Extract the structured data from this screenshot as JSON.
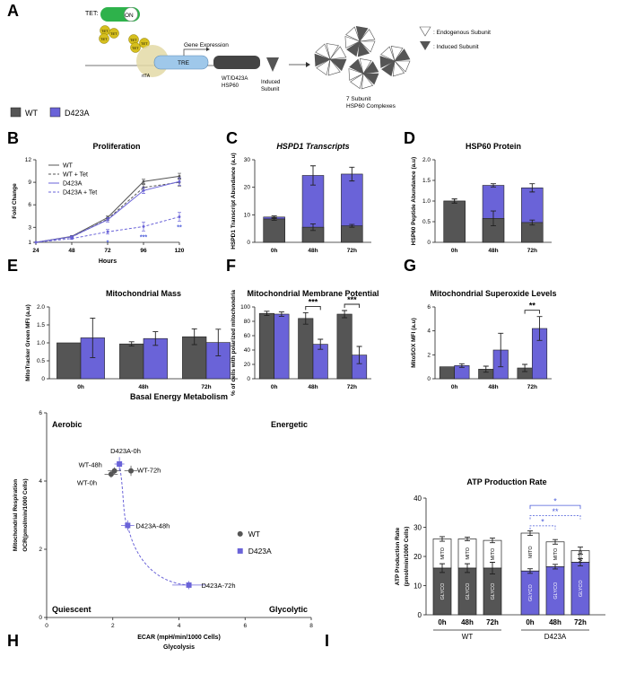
{
  "colors": {
    "wt": "#555555",
    "d423a": "#6a63d8",
    "tet_green": "#2eb24b",
    "tet_yellow": "#d6bf1e",
    "tre": "#9fc8ea",
    "star_blue": "#4a5bd9"
  },
  "panel_letters": [
    "A",
    "B",
    "C",
    "D",
    "E",
    "F",
    "G",
    "H",
    "I"
  ],
  "panelA": {
    "tet_label": "TET:",
    "on_label": "ON",
    "tet_chip": "TET",
    "rtta": "rtTA",
    "tre": "TRE",
    "gene_expression": "Gene Expression",
    "construct": "WT/D423A\nHSP60",
    "induced_subunit": "Induced\nSubunit",
    "complex_caption": "7 Subunit\nHSP60 Complexes",
    "legend_endogenous": ": Endogenous Subunit",
    "legend_induced": ": Induced Subunit"
  },
  "main_legend": {
    "wt": "WT",
    "d423a": "D423A"
  },
  "chart_data": [
    {
      "panel": "B",
      "type": "line",
      "title": "Proliferation",
      "xlabel": "Hours",
      "ylabel": "Fold Change",
      "x": [
        24,
        48,
        72,
        96,
        120
      ],
      "xlim": [
        24,
        120
      ],
      "ylim": [
        1,
        12
      ],
      "yticks": [
        1,
        3,
        6,
        9,
        12
      ],
      "series": [
        {
          "name": "WT",
          "values": [
            1,
            1.8,
            4.3,
            9.1,
            9.8
          ],
          "err": [
            0,
            0.1,
            0.2,
            0.3,
            0.4
          ],
          "style": "solid",
          "color": "wt"
        },
        {
          "name": "WT + Tet",
          "values": [
            1,
            1.7,
            4.1,
            8.3,
            9.0
          ],
          "err": [
            0,
            0.1,
            0.2,
            0.4,
            0.5
          ],
          "style": "dashed",
          "color": "wt"
        },
        {
          "name": "D423A",
          "values": [
            1,
            1.75,
            4.0,
            7.9,
            9.1
          ],
          "err": [
            0,
            0.1,
            0.3,
            0.4,
            0.5
          ],
          "style": "solid",
          "color": "d423a"
        },
        {
          "name": "D423A + Tet",
          "values": [
            1,
            1.5,
            2.4,
            3.1,
            4.4
          ],
          "err": [
            0,
            0.1,
            0.3,
            0.6,
            0.6
          ],
          "style": "dashed",
          "color": "d423a"
        }
      ],
      "annotations": [
        {
          "x": 72,
          "text": "*"
        },
        {
          "x": 96,
          "text": "***"
        },
        {
          "x": 120,
          "text": "**"
        }
      ]
    },
    {
      "panel": "C",
      "type": "bar",
      "title": "HSPD1 Transcripts",
      "ylabel": "HSPD1 Transcript Abundance (a.u)",
      "categories": [
        "0h",
        "48h",
        "72h"
      ],
      "ylim": [
        0,
        30
      ],
      "yticks": [
        0,
        10,
        20,
        30
      ],
      "series": [
        {
          "name": "WT",
          "values": [
            8.5,
            5.5,
            6.0
          ],
          "err": [
            0.5,
            1.2,
            0.5
          ]
        },
        {
          "name": "D423A",
          "values": [
            9.2,
            24.3,
            24.8
          ],
          "err": [
            0.4,
            3.5,
            2.5
          ]
        }
      ],
      "stacked": true
    },
    {
      "panel": "D",
      "type": "bar",
      "title": "HSP60 Protein",
      "ylabel": "HSP60 Peptide Abundance (a.u)",
      "categories": [
        "0h",
        "48h",
        "72h"
      ],
      "ylim": [
        0,
        2.0
      ],
      "yticks": [
        0,
        0.5,
        1.0,
        1.5,
        2.0
      ],
      "series": [
        {
          "name": "WT",
          "values": [
            1.0,
            0.58,
            0.48
          ],
          "err": [
            0.05,
            0.18,
            0.06
          ]
        },
        {
          "name": "D423A",
          "values": [
            1.0,
            1.38,
            1.32
          ],
          "err": [
            0.05,
            0.04,
            0.1
          ]
        }
      ],
      "stacked": true
    },
    {
      "panel": "E",
      "type": "bar",
      "title": "Mitochondrial Mass",
      "ylabel": "MitoTracker Green MFI (a.u)",
      "categories": [
        "0h",
        "48h",
        "72h"
      ],
      "ylim": [
        0,
        2.0
      ],
      "yticks": [
        0,
        0.5,
        1.0,
        1.5,
        2.0
      ],
      "series": [
        {
          "name": "WT",
          "values": [
            1.0,
            0.97,
            1.17
          ],
          "err": [
            0,
            0.06,
            0.22
          ]
        },
        {
          "name": "D423A",
          "values": [
            1.14,
            1.12,
            1.01
          ],
          "err": [
            0.55,
            0.19,
            0.37
          ]
        }
      ]
    },
    {
      "panel": "F",
      "type": "bar",
      "title": "Mitochondrial Membrane Potential",
      "ylabel": "% of cells with polarized mitochondria",
      "categories": [
        "0h",
        "48h",
        "72h"
      ],
      "ylim": [
        0,
        100
      ],
      "yticks": [
        0,
        20,
        40,
        60,
        80,
        100
      ],
      "series": [
        {
          "name": "WT",
          "values": [
            91,
            84,
            90
          ],
          "err": [
            3,
            8,
            5
          ]
        },
        {
          "name": "D423A",
          "values": [
            90,
            48,
            33
          ],
          "err": [
            3,
            7,
            12
          ]
        }
      ],
      "sig": [
        {
          "cat": 1,
          "text": "***"
        },
        {
          "cat": 2,
          "text": "***"
        }
      ]
    },
    {
      "panel": "G",
      "type": "bar",
      "title": "Mitochondrial Superoxide Levels",
      "ylabel": "MitoSOX MFI (a.u)",
      "categories": [
        "0h",
        "48h",
        "72h"
      ],
      "ylim": [
        0,
        6
      ],
      "yticks": [
        0,
        2,
        4,
        6
      ],
      "series": [
        {
          "name": "WT",
          "values": [
            1.0,
            0.8,
            0.9
          ],
          "err": [
            0,
            0.25,
            0.3
          ]
        },
        {
          "name": "D423A",
          "values": [
            1.1,
            2.4,
            4.2
          ],
          "err": [
            0.15,
            1.4,
            1.0
          ]
        }
      ],
      "sig": [
        {
          "cat": 2,
          "text": "**"
        }
      ]
    },
    {
      "panel": "H",
      "type": "scatter",
      "title": "Basal Energy Metabolism",
      "xlabel": "ECAR (mpH/min/1000 Cells)",
      "xlabel2": "Glycolysis",
      "ylabel": "OCR(pmol/min/1000 Cells)",
      "ylabel2": "Mitochondrial Respiration",
      "xlim": [
        0,
        8
      ],
      "ylim": [
        0,
        6
      ],
      "xticks": [
        0,
        2,
        4,
        6,
        8
      ],
      "yticks": [
        0,
        2,
        4,
        6
      ],
      "quadrants": {
        "tl": "Aerobic",
        "tr": "Energetic",
        "bl": "Quiescent",
        "br": "Glycolytic"
      },
      "legend": {
        "wt": "WT",
        "d423a": "D423A"
      },
      "points": [
        {
          "label": "WT-0h",
          "series": "WT",
          "x": 1.95,
          "y": 4.2,
          "xerr": 0.2,
          "yerr": 0.1
        },
        {
          "label": "WT-48h",
          "series": "WT",
          "x": 2.05,
          "y": 4.3,
          "xerr": 0.2,
          "yerr": 0.1
        },
        {
          "label": "WT-72h",
          "series": "WT",
          "x": 2.55,
          "y": 4.3,
          "xerr": 0.2,
          "yerr": 0.15
        },
        {
          "label": "D423A-0h",
          "series": "D423A",
          "x": 2.2,
          "y": 4.5,
          "xerr": 0.15,
          "yerr": 0.2
        },
        {
          "label": "D423A-48h",
          "series": "D423A",
          "x": 2.45,
          "y": 2.7,
          "xerr": 0.2,
          "yerr": 0.15
        },
        {
          "label": "D423A-72h",
          "series": "D423A",
          "x": 4.3,
          "y": 0.95,
          "xerr": 0.5,
          "yerr": 0.12
        }
      ]
    },
    {
      "panel": "I",
      "type": "bar",
      "title": "ATP Production Rate",
      "ylabel": "ATP Production Rate\n(pmol/min/1000 Cells)",
      "categories": [
        "0h",
        "48h",
        "72h",
        "0h",
        "48h",
        "72h"
      ],
      "groups": [
        "WT",
        "D423A"
      ],
      "ylim": [
        0,
        40
      ],
      "yticks": [
        0,
        10,
        20,
        30,
        40
      ],
      "glyco": [
        16,
        16,
        16,
        15,
        16.5,
        18
      ],
      "glyco_err": [
        1.5,
        1.5,
        2,
        0.8,
        0.8,
        1.2
      ],
      "total": [
        26,
        26,
        25.5,
        28,
        25,
        22
      ],
      "total_err": [
        0.8,
        0.6,
        0.8,
        0.8,
        0.8,
        1.2
      ],
      "mito_label": "MITO",
      "glyco_label": "GLYCO",
      "sig": [
        {
          "text": "*"
        },
        {
          "text": "**"
        },
        {
          "text": "*"
        }
      ]
    }
  ]
}
